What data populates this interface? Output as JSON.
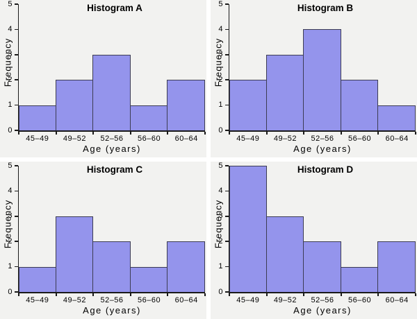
{
  "colors": {
    "page_background": "#ffffff",
    "panel_background": "#f2f2f0",
    "bar_fill": "#9494ec",
    "bar_border": "#3c3c52",
    "axis_color": "#1a1a1a",
    "text_color": "#000000"
  },
  "chart_data": [
    {
      "type": "bar",
      "title": "Histogram A",
      "categories": [
        "45–49",
        "49–52",
        "52–56",
        "56–60",
        "60–64"
      ],
      "values": [
        1,
        2,
        3,
        1,
        2
      ],
      "xlabel": "Age (years)",
      "ylabel": "Frequency",
      "ylim": [
        0,
        5
      ],
      "yticks": [
        0,
        1,
        2,
        3,
        4,
        5
      ],
      "grid": false,
      "legend": "none"
    },
    {
      "type": "bar",
      "title": "Histogram B",
      "categories": [
        "45–49",
        "49–52",
        "52–56",
        "56–60",
        "60–64"
      ],
      "values": [
        2,
        3,
        4,
        2,
        1
      ],
      "xlabel": "Age (years)",
      "ylabel": "Frequency",
      "ylim": [
        0,
        5
      ],
      "yticks": [
        0,
        1,
        2,
        3,
        4,
        5
      ],
      "grid": false,
      "legend": "none"
    },
    {
      "type": "bar",
      "title": "Histogram C",
      "categories": [
        "45–49",
        "49–52",
        "52–56",
        "56–60",
        "60–64"
      ],
      "values": [
        1,
        3,
        2,
        1,
        2
      ],
      "xlabel": "Age (years)",
      "ylabel": "Frequency",
      "ylim": [
        0,
        5
      ],
      "yticks": [
        0,
        1,
        2,
        3,
        4,
        5
      ],
      "grid": false,
      "legend": "none"
    },
    {
      "type": "bar",
      "title": "Histogram D",
      "categories": [
        "45–49",
        "49–52",
        "52–56",
        "56–60",
        "60–64"
      ],
      "values": [
        5,
        3,
        2,
        1,
        2
      ],
      "xlabel": "Age (years)",
      "ylabel": "Frequency",
      "ylim": [
        0,
        5
      ],
      "yticks": [
        0,
        1,
        2,
        3,
        4,
        5
      ],
      "grid": false,
      "legend": "none"
    }
  ]
}
